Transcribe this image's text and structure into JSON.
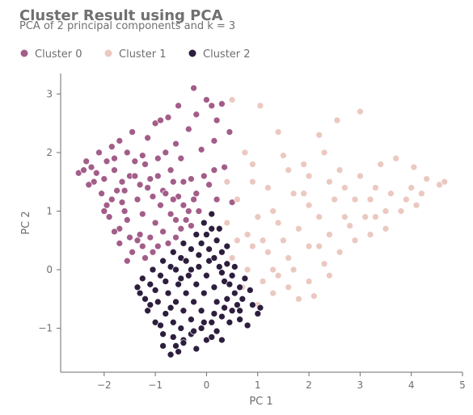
{
  "chart_data": {
    "type": "scatter",
    "title": "Cluster Result using PCA",
    "subtitle": "PCA of 2 principal components and k = 3",
    "xlabel": "PC 1",
    "ylabel": "PC 2",
    "xlim": [
      -2.85,
      5.0
    ],
    "ylim": [
      -1.75,
      3.35
    ],
    "xticks": [
      -2,
      -1,
      0,
      1,
      2,
      3,
      4,
      5
    ],
    "yticks": [
      -1,
      0,
      1,
      2,
      3
    ],
    "xtick_labels": [
      "−2",
      "−1",
      "0",
      "1",
      "2",
      "3",
      "4",
      "5"
    ],
    "ytick_labels": [
      "−1",
      "0",
      "1",
      "2",
      "3"
    ],
    "grid": false,
    "legend": {
      "placement": "top-left",
      "horizontal": true
    },
    "series": [
      {
        "name": "Cluster 0",
        "color": "#a35d89",
        "points": [
          [
            -2.5,
            1.65
          ],
          [
            -2.35,
            1.85
          ],
          [
            -2.25,
            1.75
          ],
          [
            -2.1,
            2.0
          ],
          [
            -2.0,
            1.55
          ],
          [
            -1.95,
            1.85
          ],
          [
            -1.85,
            2.1
          ],
          [
            -1.8,
            1.7
          ],
          [
            -1.7,
            2.2
          ],
          [
            -1.65,
            1.5
          ],
          [
            -1.55,
            2.0
          ],
          [
            -1.5,
            1.6
          ],
          [
            -1.45,
            2.35
          ],
          [
            -1.4,
            1.85
          ],
          [
            -1.3,
            1.45
          ],
          [
            -1.25,
            1.95
          ],
          [
            -1.15,
            2.25
          ],
          [
            -1.1,
            1.55
          ],
          [
            -1.0,
            2.5
          ],
          [
            -0.95,
            1.9
          ],
          [
            -0.9,
            2.55
          ],
          [
            -0.85,
            1.35
          ],
          [
            -0.8,
            2.0
          ],
          [
            -0.75,
            2.6
          ],
          [
            -0.65,
            1.5
          ],
          [
            -0.55,
            2.8
          ],
          [
            -0.5,
            1.9
          ],
          [
            -0.45,
            1.1
          ],
          [
            -0.35,
            2.4
          ],
          [
            -0.3,
            1.55
          ],
          [
            -0.25,
            3.1
          ],
          [
            -0.2,
            2.65
          ],
          [
            -0.15,
            1.0
          ],
          [
            -0.1,
            2.05
          ],
          [
            0.0,
            2.9
          ],
          [
            0.05,
            1.45
          ],
          [
            0.1,
            2.8
          ],
          [
            0.15,
            2.2
          ],
          [
            0.2,
            1.2
          ],
          [
            0.3,
            2.83
          ],
          [
            0.35,
            1.75
          ],
          [
            0.45,
            2.35
          ],
          [
            0.5,
            1.15
          ],
          [
            0.2,
            2.55
          ],
          [
            -0.6,
            2.15
          ],
          [
            -1.2,
            1.8
          ],
          [
            -1.6,
            1.0
          ],
          [
            -1.3,
            0.6
          ],
          [
            -1.0,
            0.8
          ],
          [
            -0.7,
            0.95
          ],
          [
            -0.4,
            0.85
          ],
          [
            -1.45,
            0.3
          ],
          [
            -1.2,
            0.2
          ],
          [
            -0.95,
            0.4
          ],
          [
            -0.6,
            0.55
          ],
          [
            -0.3,
            0.75
          ],
          [
            -1.85,
            1.2
          ],
          [
            -2.05,
            1.3
          ],
          [
            -1.7,
            0.7
          ],
          [
            -2.2,
            1.5
          ],
          [
            -1.9,
            0.9
          ],
          [
            -1.55,
            0.85
          ],
          [
            -1.35,
            1.2
          ],
          [
            -1.05,
            1.25
          ],
          [
            -0.8,
            1.3
          ],
          [
            -0.55,
            1.25
          ],
          [
            -0.2,
            1.3
          ],
          [
            -1.75,
            1.35
          ],
          [
            -2.4,
            1.7
          ],
          [
            -2.3,
            1.45
          ],
          [
            -1.65,
            1.15
          ],
          [
            -1.5,
            0.55
          ],
          [
            -1.1,
            0.55
          ],
          [
            -0.85,
            0.65
          ],
          [
            -0.45,
            1.5
          ],
          [
            -0.05,
            1.6
          ],
          [
            0.15,
            1.7
          ],
          [
            -1.95,
            1.1
          ],
          [
            -1.25,
            0.95
          ],
          [
            -0.7,
            1.7
          ],
          [
            -1.8,
            1.9
          ],
          [
            -1.4,
            1.6
          ],
          [
            -0.9,
            1.1
          ],
          [
            -0.35,
            1.0
          ],
          [
            -2.15,
            1.65
          ],
          [
            -1.6,
            1.35
          ],
          [
            -1.15,
            1.4
          ],
          [
            -0.65,
            1.2
          ],
          [
            -0.25,
            1.2
          ],
          [
            -1.05,
            0.3
          ],
          [
            -1.35,
            0.5
          ],
          [
            -0.75,
            0.45
          ],
          [
            -0.5,
            0.7
          ],
          [
            -1.55,
            0.15
          ],
          [
            -1.25,
            0.4
          ],
          [
            -1.7,
            0.45
          ],
          [
            -2.0,
            1.0
          ],
          [
            -1.8,
            0.65
          ],
          [
            -0.95,
            1.6
          ],
          [
            -0.6,
            0.85
          ]
        ]
      },
      {
        "name": "Cluster 1",
        "color": "#ebc9c0",
        "points": [
          [
            0.5,
            2.9
          ],
          [
            1.05,
            2.8
          ],
          [
            3.0,
            2.7
          ],
          [
            2.55,
            2.55
          ],
          [
            2.2,
            2.3
          ],
          [
            1.4,
            2.35
          ],
          [
            0.75,
            2.0
          ],
          [
            1.5,
            1.95
          ],
          [
            2.3,
            2.0
          ],
          [
            3.4,
            1.8
          ],
          [
            3.7,
            1.9
          ],
          [
            4.05,
            1.75
          ],
          [
            4.3,
            1.55
          ],
          [
            4.55,
            1.45
          ],
          [
            4.65,
            1.5
          ],
          [
            4.2,
            1.3
          ],
          [
            3.9,
            1.2
          ],
          [
            3.5,
            1.0
          ],
          [
            3.1,
            0.9
          ],
          [
            2.8,
            0.75
          ],
          [
            2.4,
            0.6
          ],
          [
            2.0,
            0.4
          ],
          [
            1.6,
            0.2
          ],
          [
            1.3,
            0.0
          ],
          [
            1.1,
            -0.2
          ],
          [
            1.3,
            -0.4
          ],
          [
            1.6,
            -0.3
          ],
          [
            1.8,
            -0.5
          ],
          [
            2.1,
            -0.45
          ],
          [
            2.3,
            0.1
          ],
          [
            2.6,
            0.3
          ],
          [
            2.9,
            0.5
          ],
          [
            3.2,
            0.6
          ],
          [
            3.5,
            0.7
          ],
          [
            3.8,
            1.0
          ],
          [
            4.1,
            1.1
          ],
          [
            2.5,
            1.2
          ],
          [
            2.0,
            1.1
          ],
          [
            1.7,
            1.3
          ],
          [
            1.2,
            1.4
          ],
          [
            0.9,
            1.5
          ],
          [
            0.6,
            1.2
          ],
          [
            0.4,
            0.8
          ],
          [
            0.8,
            0.6
          ],
          [
            1.0,
            0.9
          ],
          [
            1.4,
            0.8
          ],
          [
            1.8,
            0.7
          ],
          [
            2.2,
            0.9
          ],
          [
            2.7,
            1.4
          ],
          [
            3.0,
            1.6
          ],
          [
            3.3,
            1.4
          ],
          [
            2.0,
            1.6
          ],
          [
            1.6,
            1.7
          ],
          [
            0.5,
            0.2
          ],
          [
            0.8,
            0.0
          ],
          [
            1.2,
            0.3
          ],
          [
            1.5,
            0.5
          ],
          [
            2.4,
            -0.1
          ],
          [
            2.0,
            -0.2
          ],
          [
            1.7,
            0.0
          ],
          [
            1.0,
            -0.6
          ],
          [
            0.7,
            -0.3
          ],
          [
            0.9,
            0.4
          ],
          [
            1.3,
            1.0
          ],
          [
            1.9,
            1.3
          ],
          [
            2.4,
            1.5
          ],
          [
            2.9,
            1.2
          ],
          [
            3.6,
            1.3
          ],
          [
            4.0,
            1.4
          ],
          [
            3.3,
            0.9
          ],
          [
            2.7,
            0.9
          ],
          [
            2.2,
            0.4
          ],
          [
            1.4,
            -0.1
          ],
          [
            1.1,
            0.5
          ],
          [
            0.6,
            0.5
          ],
          [
            0.4,
            1.5
          ],
          [
            0.9,
            1.8
          ],
          [
            1.9,
            1.8
          ],
          [
            2.6,
            1.7
          ],
          [
            3.2,
            1.2
          ]
        ]
      },
      {
        "name": "Cluster 2",
        "color": "#2d1e3e",
        "points": [
          [
            -0.7,
            -1.45
          ],
          [
            -0.6,
            -1.3
          ],
          [
            -0.45,
            -1.2
          ],
          [
            -0.3,
            -1.1
          ],
          [
            -0.1,
            -1.0
          ],
          [
            0.1,
            -0.9
          ],
          [
            0.3,
            -0.8
          ],
          [
            0.5,
            -0.7
          ],
          [
            0.7,
            -0.5
          ],
          [
            0.9,
            -0.6
          ],
          [
            0.65,
            -0.3
          ],
          [
            0.5,
            -0.1
          ],
          [
            0.4,
            0.1
          ],
          [
            0.3,
            0.3
          ],
          [
            0.2,
            0.5
          ],
          [
            0.1,
            0.7
          ],
          [
            0.0,
            0.6
          ],
          [
            -0.1,
            0.45
          ],
          [
            -0.3,
            0.35
          ],
          [
            -0.5,
            0.2
          ],
          [
            -0.7,
            0.05
          ],
          [
            -0.9,
            -0.1
          ],
          [
            -1.1,
            -0.25
          ],
          [
            -1.3,
            -0.4
          ],
          [
            -1.15,
            -0.7
          ],
          [
            -1.0,
            -0.9
          ],
          [
            -0.85,
            -1.1
          ],
          [
            -0.65,
            -0.9
          ],
          [
            -0.45,
            -0.7
          ],
          [
            -0.25,
            -0.55
          ],
          [
            -0.05,
            -0.4
          ],
          [
            0.15,
            -0.3
          ],
          [
            0.35,
            -0.2
          ],
          [
            0.55,
            -0.4
          ],
          [
            0.25,
            0.05
          ],
          [
            0.05,
            0.15
          ],
          [
            -0.15,
            0.05
          ],
          [
            -0.35,
            -0.1
          ],
          [
            -0.55,
            -0.25
          ],
          [
            -0.75,
            -0.4
          ],
          [
            -0.95,
            -0.55
          ],
          [
            -0.8,
            -0.75
          ],
          [
            -0.6,
            -0.55
          ],
          [
            -0.4,
            -0.4
          ],
          [
            -0.2,
            -0.25
          ],
          [
            0.0,
            -0.1
          ],
          [
            0.2,
            -0.55
          ],
          [
            0.4,
            -0.5
          ],
          [
            0.6,
            -0.6
          ],
          [
            -0.1,
            -0.7
          ],
          [
            -0.3,
            -0.85
          ],
          [
            -0.5,
            -1.0
          ],
          [
            0.2,
            -1.05
          ],
          [
            0.0,
            -1.2
          ],
          [
            -0.2,
            -1.35
          ],
          [
            0.4,
            0.4
          ],
          [
            0.25,
            0.7
          ],
          [
            0.1,
            0.95
          ],
          [
            -0.05,
            0.8
          ],
          [
            -0.2,
            0.6
          ],
          [
            -0.45,
            0.45
          ],
          [
            -0.65,
            0.3
          ],
          [
            -0.85,
            0.15
          ],
          [
            -1.05,
            0.0
          ],
          [
            -1.25,
            -0.15
          ],
          [
            -1.2,
            -0.5
          ],
          [
            -1.0,
            -0.35
          ],
          [
            -0.8,
            -0.2
          ],
          [
            -0.6,
            0.0
          ],
          [
            -0.4,
            0.15
          ],
          [
            0.45,
            -0.9
          ],
          [
            0.65,
            -0.85
          ],
          [
            0.85,
            -0.35
          ],
          [
            1.05,
            -0.65
          ],
          [
            0.75,
            -0.15
          ],
          [
            0.55,
            0.05
          ],
          [
            0.35,
            -0.65
          ],
          [
            0.15,
            -0.75
          ],
          [
            -0.05,
            -0.9
          ],
          [
            -0.25,
            -1.05
          ],
          [
            -0.45,
            -1.25
          ],
          [
            -0.65,
            -1.15
          ],
          [
            -0.85,
            -1.3
          ],
          [
            -0.55,
            -1.4
          ],
          [
            0.3,
            -1.2
          ],
          [
            0.1,
            -1.15
          ],
          [
            -0.9,
            -0.95
          ],
          [
            -1.1,
            -0.6
          ],
          [
            -1.35,
            -0.3
          ],
          [
            -0.7,
            -0.65
          ],
          [
            -0.15,
            0.25
          ],
          [
            0.05,
            0.35
          ],
          [
            0.15,
            0.2
          ],
          [
            -0.3,
            0.0
          ],
          [
            -0.5,
            -0.15
          ],
          [
            0.3,
            -0.05
          ],
          [
            0.45,
            -0.25
          ],
          [
            0.65,
            -0.7
          ],
          [
            0.8,
            -0.95
          ],
          [
            1.0,
            -0.75
          ]
        ]
      }
    ]
  }
}
